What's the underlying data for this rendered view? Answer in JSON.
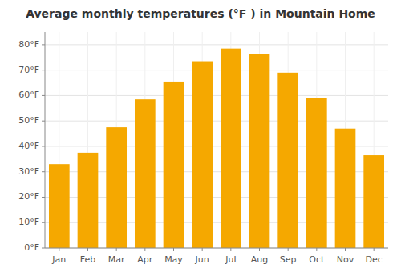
{
  "chart_data": {
    "type": "bar",
    "title": "Average monthly temperatures (°F ) in Mountain Home",
    "categories": [
      "Jan",
      "Feb",
      "Mar",
      "Apr",
      "May",
      "Jun",
      "Jul",
      "Aug",
      "Sep",
      "Oct",
      "Nov",
      "Dec"
    ],
    "values": [
      33,
      37.5,
      47.5,
      58.5,
      65.5,
      73.5,
      78.5,
      76.5,
      69,
      59,
      47,
      36.5
    ],
    "color": "#F5A800",
    "ylim": [
      0,
      85
    ],
    "yticks": [
      {
        "value": 0,
        "label": "0°F"
      },
      {
        "value": 10,
        "label": "10°F"
      },
      {
        "value": 20,
        "label": "20°F"
      },
      {
        "value": 30,
        "label": "30°F"
      },
      {
        "value": 40,
        "label": "40°F"
      },
      {
        "value": 50,
        "label": "50°F"
      },
      {
        "value": 60,
        "label": "60°F"
      },
      {
        "value": 70,
        "label": "70°F"
      },
      {
        "value": 80,
        "label": "80°F"
      }
    ],
    "grid": true
  }
}
